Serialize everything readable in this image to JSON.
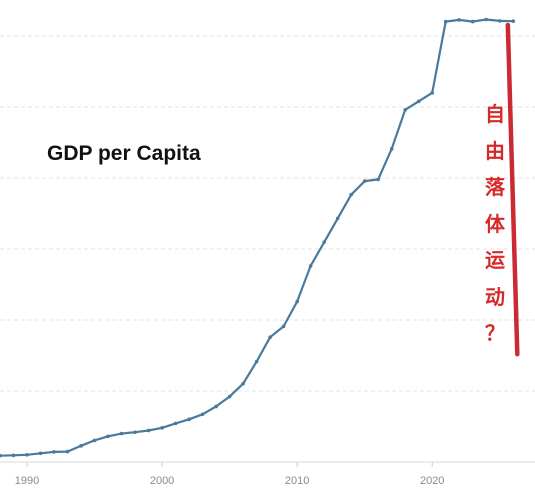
{
  "chart_data": {
    "type": "line",
    "title": "GDP per Capita",
    "xlabel": "",
    "ylabel": "",
    "xlim": [
      1988,
      2026.5
    ],
    "ylim": [
      0,
      13200
    ],
    "xticks": [
      1990,
      2000,
      2010,
      2020
    ],
    "xtick_labels": [
      "1990",
      "2000",
      "2010",
      "2020"
    ],
    "grid": true,
    "series": [
      {
        "color": "#4a7a9b",
        "x": [
          1988,
          1989,
          1990,
          1991,
          1992,
          1993,
          1994,
          1995,
          1996,
          1997,
          1998,
          1999,
          2000,
          2001,
          2002,
          2003,
          2004,
          2005,
          2006,
          2007,
          2008,
          2009,
          2010,
          2011,
          2012,
          2013,
          2014,
          2015,
          2016,
          2017,
          2018,
          2019,
          2020,
          2021,
          2022,
          2023,
          2024,
          2025,
          2026
        ],
        "y": [
          10,
          20,
          35,
          80,
          120,
          130,
          300,
          460,
          580,
          660,
          700,
          750,
          830,
          960,
          1080,
          1230,
          1460,
          1750,
          2130,
          2780,
          3500,
          3820,
          4550,
          5600,
          6300,
          7000,
          7700,
          8100,
          8150,
          9050,
          10200,
          10450,
          10700,
          12800,
          12850,
          12800,
          12860,
          12820,
          12810
        ]
      }
    ],
    "annotation": {
      "text_chars": [
        "自",
        "由",
        "落",
        "体",
        "运",
        "动",
        "？"
      ],
      "color": "#d62a2a",
      "drop_line": {
        "color": "#cc2a33",
        "x": [
          2025.6,
          2026.3
        ],
        "y": [
          12700,
          3000
        ]
      }
    }
  }
}
